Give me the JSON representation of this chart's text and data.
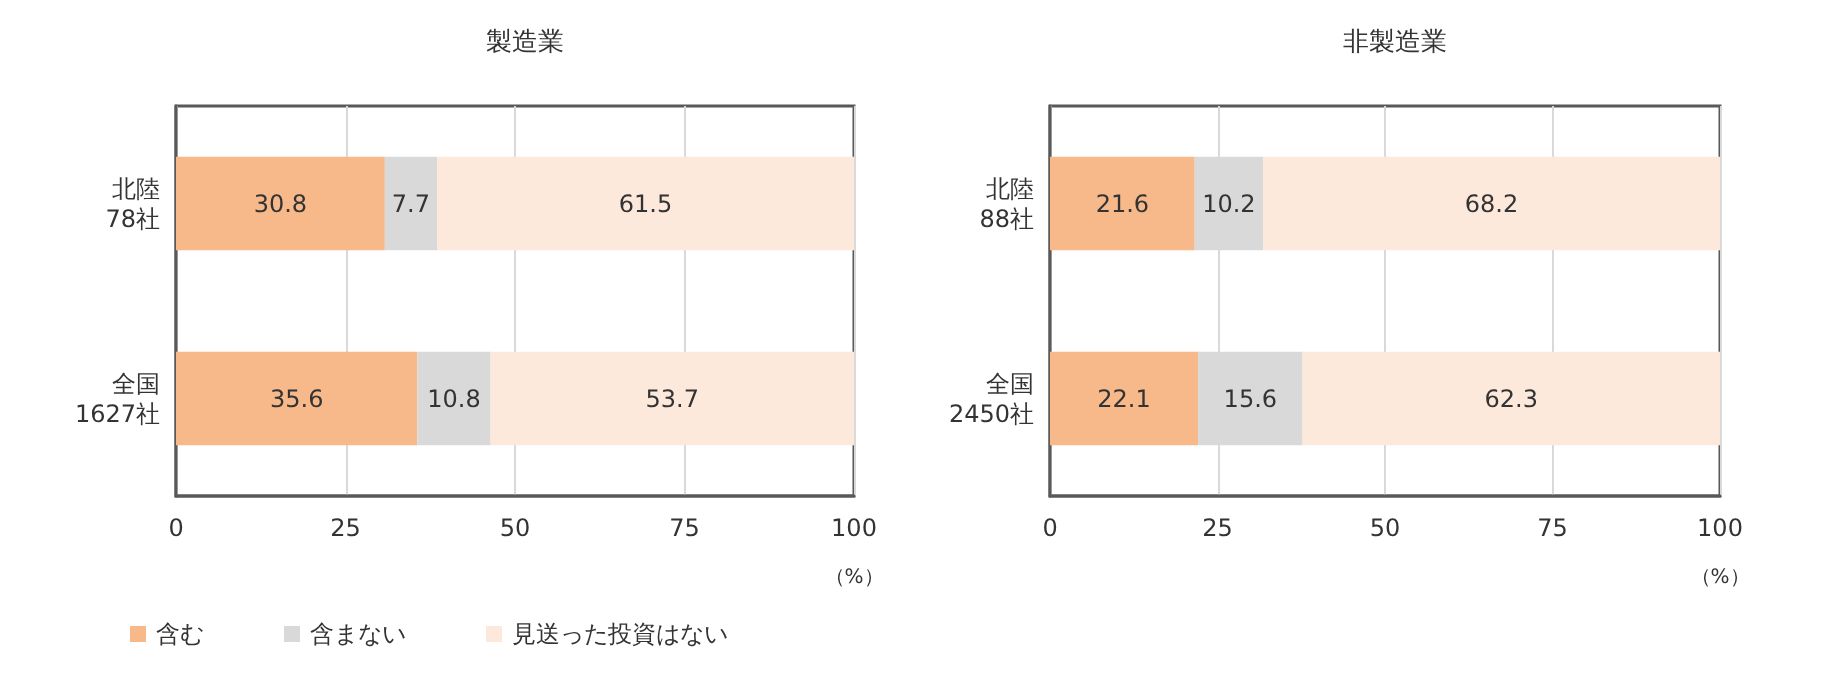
{
  "chart_data": [
    {
      "type": "bar",
      "orientation": "horizontal",
      "stacked": true,
      "title": "製造業",
      "xlabel": "（%）",
      "categories": [
        "北陸\n78社",
        "全国\n1627社"
      ],
      "series": [
        {
          "name": "含む",
          "color": "#f7b98a",
          "values": [
            30.8,
            35.6
          ]
        },
        {
          "name": "含まない",
          "color": "#d9d9d9",
          "values": [
            7.7,
            10.8
          ]
        },
        {
          "name": "見送った投資はない",
          "color": "#fde9dc",
          "values": [
            61.5,
            53.7
          ]
        }
      ],
      "xlim": [
        0,
        100
      ],
      "xticks": [
        0,
        25,
        50,
        75,
        100
      ],
      "grid": "x",
      "data_labels": true,
      "legend": "bottom"
    },
    {
      "type": "bar",
      "orientation": "horizontal",
      "stacked": true,
      "title": "非製造業",
      "xlabel": "（%）",
      "categories": [
        "北陸\n88社",
        "全国\n2450社"
      ],
      "series": [
        {
          "color": "#f7b98a",
          "values": [
            21.6,
            22.1
          ]
        },
        {
          "color": "#d9d9d9",
          "values": [
            10.2,
            15.6
          ]
        },
        {
          "color": "#fde9dc",
          "values": [
            68.2,
            62.3
          ]
        }
      ],
      "xlim": [
        0,
        100
      ],
      "xticks": [
        0,
        25,
        50,
        75,
        100
      ],
      "grid": "x",
      "data_labels": true
    }
  ]
}
